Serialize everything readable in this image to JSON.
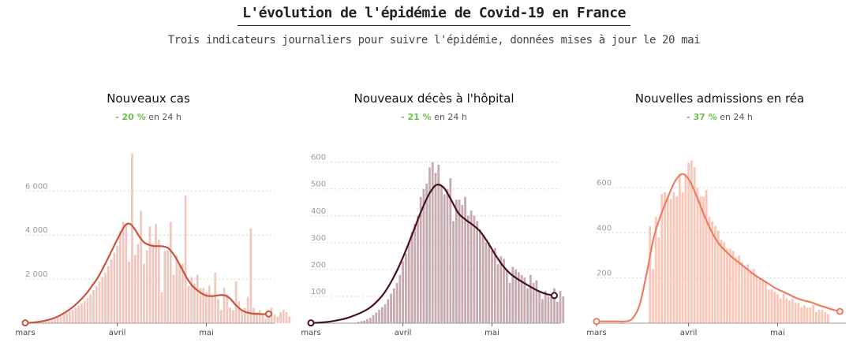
{
  "header": {
    "title": "L'évolution de l'épidémie de Covid-19 en France",
    "subtitle": "Trois indicateurs journaliers pour suivre l'épidémie, données mises à jour le 20 mai"
  },
  "chart_data": [
    {
      "type": "bar",
      "title": "Nouveaux cas",
      "change": {
        "value": "- 20 %",
        "suffix": "en 24 h",
        "color": "#6abf4b"
      },
      "color": {
        "bar": "#f0c7bf",
        "line": "#c9533b"
      },
      "x_ticks": [
        "mars",
        "avril",
        "mai"
      ],
      "y_ticks": [
        {
          "value": 2000,
          "label": "2 000"
        },
        {
          "value": 4000,
          "label": "4 000"
        },
        {
          "value": 6000,
          "label": "6 000"
        }
      ],
      "ylim": [
        0,
        7800
      ],
      "grid": true,
      "bar_start_day": 3,
      "values": [
        15,
        20,
        30,
        50,
        80,
        100,
        150,
        200,
        250,
        300,
        380,
        450,
        520,
        600,
        700,
        800,
        900,
        1000,
        1150,
        1300,
        1500,
        1700,
        1900,
        2100,
        2300,
        2600,
        2900,
        3200,
        3500,
        4200,
        4600,
        4500,
        2800,
        7700,
        3100,
        3600,
        5100,
        2700,
        3300,
        4400,
        3600,
        4500,
        3800,
        1400,
        3300,
        3300,
        4600,
        2200,
        3100,
        2700,
        2700,
        5800,
        1700,
        2100,
        1800,
        2200,
        1600,
        1600,
        1400,
        1700,
        1200,
        2300,
        1100,
        600,
        1600,
        1300,
        700,
        600,
        1900,
        1000,
        600,
        700,
        1200,
        4300,
        700,
        500,
        600,
        400,
        200,
        500,
        700,
        400,
        300,
        500,
        600,
        500,
        300
      ],
      "trend": [
        15,
        20,
        40,
        70,
        110,
        160,
        230,
        320,
        440,
        580,
        740,
        930,
        1150,
        1400,
        1700,
        2000,
        2380,
        2800,
        3240,
        3680,
        4100,
        4460,
        4500,
        4250,
        3900,
        3650,
        3550,
        3500,
        3500,
        3480,
        3400,
        3150,
        2800,
        2400,
        2000,
        1700,
        1500,
        1350,
        1250,
        1230,
        1250,
        1280,
        1250,
        1100,
        850,
        650,
        520,
        460,
        430,
        420,
        410,
        420
      ]
    },
    {
      "type": "bar",
      "title": "Nouveaux décès à l'hôpital",
      "change": {
        "value": "- 21 %",
        "suffix": "en 24 h",
        "color": "#6abf4b"
      },
      "color": {
        "bar": "#c6aab0",
        "line": "#4a0f1e"
      },
      "x_ticks": [
        "mars",
        "avril",
        "mai"
      ],
      "y_ticks": [
        {
          "value": 100,
          "label": "100"
        },
        {
          "value": 200,
          "label": "200"
        },
        {
          "value": 300,
          "label": "300"
        },
        {
          "value": 400,
          "label": "400"
        },
        {
          "value": 500,
          "label": "500"
        },
        {
          "value": 600,
          "label": "600"
        }
      ],
      "ylim": [
        0,
        640
      ],
      "grid": true,
      "bar_start_day": 15,
      "values": [
        2,
        5,
        8,
        10,
        15,
        20,
        30,
        40,
        50,
        60,
        70,
        90,
        110,
        130,
        150,
        180,
        230,
        260,
        300,
        340,
        370,
        400,
        470,
        500,
        520,
        580,
        600,
        560,
        590,
        510,
        480,
        500,
        540,
        380,
        460,
        460,
        440,
        470,
        400,
        420,
        400,
        380,
        350,
        330,
        300,
        300,
        270,
        280,
        220,
        250,
        240,
        200,
        150,
        210,
        200,
        190,
        180,
        170,
        130,
        180,
        150,
        160,
        120,
        90,
        120,
        100,
        100,
        130,
        80,
        120,
        100
      ],
      "trend": [
        1,
        2,
        4,
        8,
        13,
        20,
        30,
        42,
        58,
        82,
        115,
        160,
        215,
        280,
        350,
        420,
        480,
        515,
        505,
        460,
        410,
        385,
        365,
        340,
        300,
        255,
        215,
        185,
        165,
        148,
        132,
        118,
        108,
        103
      ]
    },
    {
      "type": "bar",
      "title": "Nouvelles admissions en réa",
      "change": {
        "value": "- 37 %",
        "suffix": "en 24 h",
        "color": "#6abf4b"
      },
      "color": {
        "bar": "#fbc6b6",
        "line": "#ee7b63"
      },
      "x_ticks": [
        "mars",
        "avril",
        "mai"
      ],
      "y_ticks": [
        {
          "value": 200,
          "label": "200"
        },
        {
          "value": 400,
          "label": "400"
        },
        {
          "value": 600,
          "label": "600"
        }
      ],
      "ylim": [
        0,
        760
      ],
      "grid": true,
      "bar_start_day": 18,
      "values": [
        430,
        240,
        470,
        380,
        570,
        580,
        560,
        550,
        580,
        560,
        660,
        580,
        660,
        710,
        720,
        690,
        600,
        560,
        560,
        590,
        470,
        450,
        430,
        410,
        370,
        360,
        330,
        330,
        320,
        290,
        300,
        270,
        250,
        260,
        230,
        240,
        210,
        200,
        190,
        180,
        150,
        150,
        140,
        130,
        110,
        130,
        110,
        100,
        110,
        90,
        90,
        70,
        80,
        70,
        70,
        80,
        50,
        60,
        60,
        50,
        40
      ],
      "trend": [
        8,
        8,
        8,
        8,
        8,
        20,
        80,
        220,
        380,
        480,
        560,
        630,
        660,
        630,
        560,
        480,
        410,
        355,
        320,
        290,
        265,
        240,
        215,
        195,
        175,
        155,
        140,
        125,
        110,
        100,
        92,
        80,
        70,
        60,
        52
      ]
    }
  ]
}
